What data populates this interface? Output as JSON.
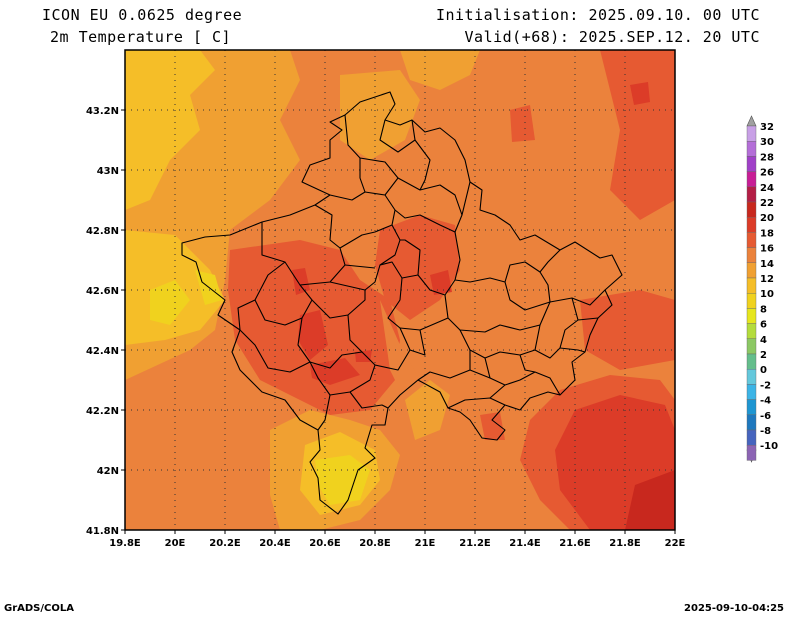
{
  "header": {
    "model": "ICON EU 0.0625 degree",
    "variable": "2m Temperature [ C]",
    "init": "Initialisation: 2025.09.10. 00 UTC",
    "valid": "Valid(+68): 2025.SEP.12. 20 UTC"
  },
  "axes": {
    "lat_labels": [
      "43.2N",
      "43N",
      "42.8N",
      "42.6N",
      "42.4N",
      "42.2N",
      "42N",
      "41.8N"
    ],
    "lon_labels": [
      "19.8E",
      "20E",
      "20.2E",
      "20.4E",
      "20.6E",
      "20.8E",
      "21E",
      "21.2E",
      "21.4E",
      "21.6E",
      "21.8E",
      "22E"
    ]
  },
  "colorbar": {
    "labels": [
      "32",
      "30",
      "28",
      "26",
      "24",
      "22",
      "20",
      "18",
      "16",
      "14",
      "12",
      "10",
      "8",
      "6",
      "4",
      "2",
      "0",
      "-2",
      "-4",
      "-6",
      "-8",
      "-10"
    ],
    "colors": [
      "#c8a0e6",
      "#b46ed8",
      "#a040c8",
      "#c81e96",
      "#b41e46",
      "#c8281e",
      "#dc3c28",
      "#e65a32",
      "#eb823c",
      "#f0a032",
      "#f5be28",
      "#f0d21e",
      "#e6e61e",
      "#b4dc3c",
      "#8cc864",
      "#64be8c",
      "#64c8dc",
      "#3cb4e6",
      "#1e96d2",
      "#1e78be",
      "#4664be",
      "#8c64b4"
    ]
  },
  "footer": {
    "left": "GrADS/COLA",
    "right": "2025-09-10-04:25"
  }
}
